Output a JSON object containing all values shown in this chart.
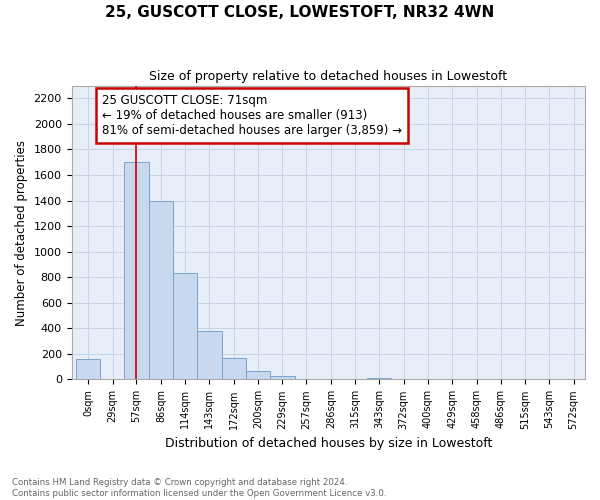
{
  "title": "25, GUSCOTT CLOSE, LOWESTOFT, NR32 4WN",
  "subtitle": "Size of property relative to detached houses in Lowestoft",
  "xlabel": "Distribution of detached houses by size in Lowestoft",
  "ylabel": "Number of detached properties",
  "annotation_line1": "25 GUSCOTT CLOSE: 71sqm",
  "annotation_line2": "← 19% of detached houses are smaller (913)",
  "annotation_line3": "81% of semi-detached houses are larger (3,859) →",
  "bar_color": "#c8d8ee",
  "bar_edge_color": "#7aa4cc",
  "bg_color": "#e8eef7",
  "annotation_box_color": "#cc0000",
  "property_line_color": "#cc0000",
  "categories": [
    "0sqm",
    "29sqm",
    "57sqm",
    "86sqm",
    "114sqm",
    "143sqm",
    "172sqm",
    "200sqm",
    "229sqm",
    "257sqm",
    "286sqm",
    "315sqm",
    "343sqm",
    "372sqm",
    "400sqm",
    "429sqm",
    "458sqm",
    "486sqm",
    "515sqm",
    "543sqm",
    "572sqm"
  ],
  "values": [
    160,
    0,
    1700,
    1400,
    830,
    380,
    170,
    65,
    30,
    0,
    0,
    0,
    15,
    0,
    0,
    0,
    0,
    0,
    0,
    0,
    0
  ],
  "ylim": [
    0,
    2300
  ],
  "yticks": [
    0,
    200,
    400,
    600,
    800,
    1000,
    1200,
    1400,
    1600,
    1800,
    2000,
    2200
  ],
  "property_line_x": 71,
  "bin_edges": [
    0,
    29,
    57,
    86,
    114,
    143,
    172,
    200,
    229,
    257,
    286,
    315,
    343,
    372,
    400,
    429,
    458,
    486,
    515,
    543,
    572
  ],
  "bin_width": 29,
  "footer_line1": "Contains HM Land Registry data © Crown copyright and database right 2024.",
  "footer_line2": "Contains public sector information licensed under the Open Government Licence v3.0.",
  "grid_color": "#c8d4e8",
  "text_color": "#333333"
}
